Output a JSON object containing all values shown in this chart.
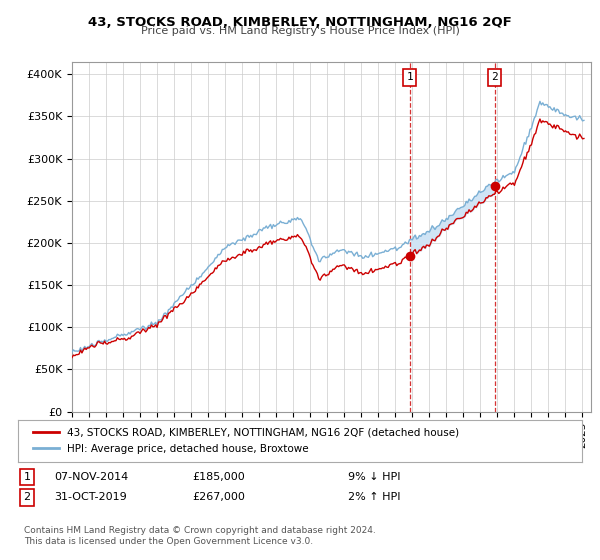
{
  "title": "43, STOCKS ROAD, KIMBERLEY, NOTTINGHAM, NG16 2QF",
  "subtitle": "Price paid vs. HM Land Registry's House Price Index (HPI)",
  "ylabel_ticks": [
    "£0",
    "£50K",
    "£100K",
    "£150K",
    "£200K",
    "£250K",
    "£300K",
    "£350K",
    "£400K"
  ],
  "ytick_values": [
    0,
    50000,
    100000,
    150000,
    200000,
    250000,
    300000,
    350000,
    400000
  ],
  "ylim": [
    0,
    415000
  ],
  "xlim_start": 1995.0,
  "xlim_end": 2025.5,
  "transactions": [
    {
      "num": 1,
      "date": "07-NOV-2014",
      "price": 185000,
      "year": 2014.85,
      "pct": "9%",
      "dir": "↓"
    },
    {
      "num": 2,
      "date": "31-OCT-2019",
      "price": 267000,
      "year": 2019.83,
      "pct": "2%",
      "dir": "↑"
    }
  ],
  "legend_property": "43, STOCKS ROAD, KIMBERLEY, NOTTINGHAM, NG16 2QF (detached house)",
  "legend_hpi": "HPI: Average price, detached house, Broxtowe",
  "property_color": "#cc0000",
  "hpi_color": "#7aafd4",
  "fill_color": "#d0e4f5",
  "note1": "Contains HM Land Registry data © Crown copyright and database right 2024.",
  "note2": "This data is licensed under the Open Government Licence v3.0.",
  "background_color": "#ffffff",
  "plot_bg_color": "#ffffff"
}
